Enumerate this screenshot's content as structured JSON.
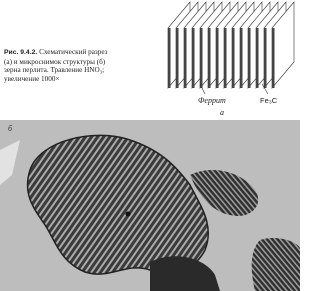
{
  "caption": {
    "label": "Рис. 9.4.2.",
    "lines": [
      "Схематический разрез",
      "(а) и микроснимок структуры (б)",
      "зерна перлита. Травление HNO₃;",
      "увеличение 1000×"
    ]
  },
  "figure_a": {
    "labels": [
      "Феррит",
      "Fe₃C"
    ],
    "panel_label": "а"
  },
  "figure_b": {
    "panel_label": "б"
  }
}
